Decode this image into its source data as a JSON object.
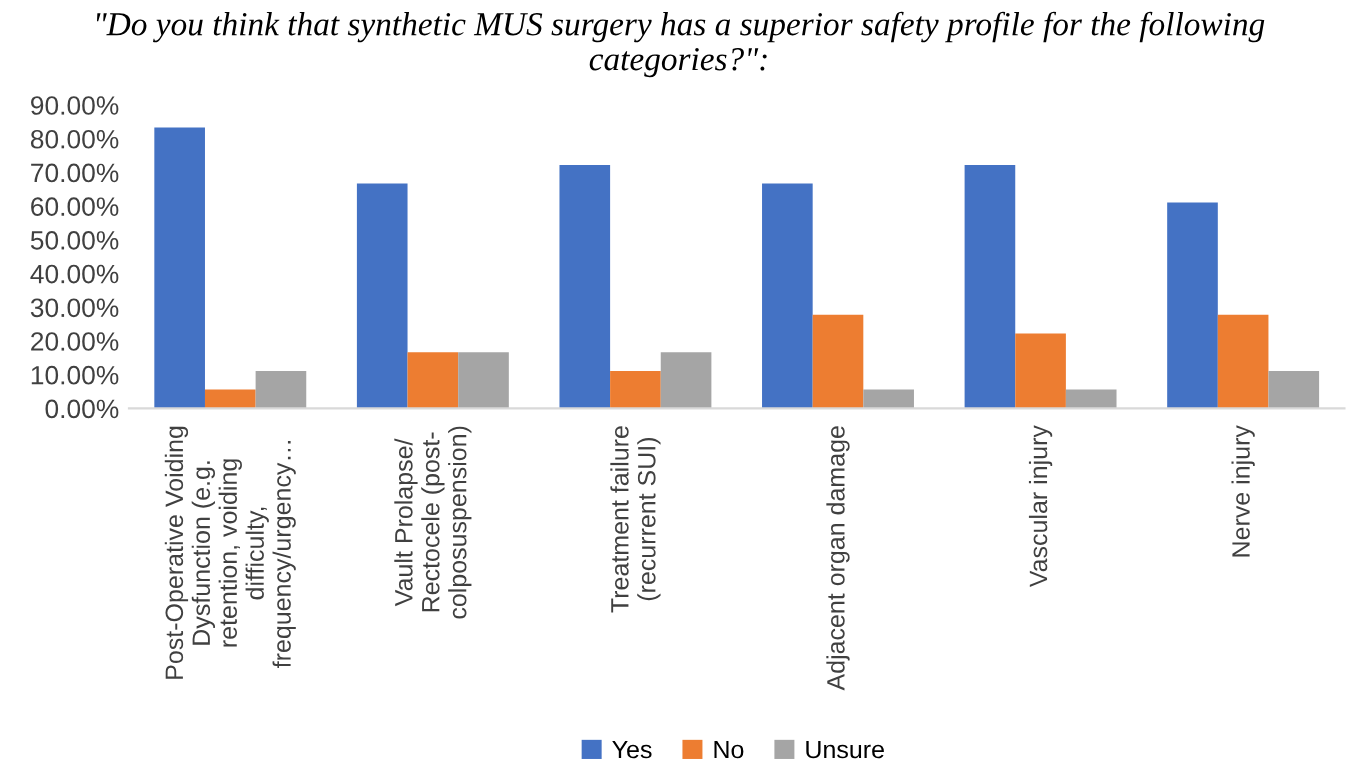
{
  "chart_data": {
    "type": "bar",
    "title": "\"Do you think that synthetic MUS surgery has a superior safety profile for the following categories?\":",
    "categories": [
      "Post-Operative Voiding\nDysfunction (e.g.\nretention, voiding\ndifficulty,\nfrequency/urgency…",
      "Vault Prolapse/\nRectocele (post-\ncolposuspension)",
      "Treatment failure\n(recurrent SUI)",
      "Adjacent organ damage",
      "Vascular injury",
      "Nerve injury"
    ],
    "series": [
      {
        "name": "Yes",
        "color": "#4472c4",
        "values": [
          83.3,
          66.7,
          72.2,
          66.7,
          72.2,
          61.1
        ]
      },
      {
        "name": "No",
        "color": "#ed7d31",
        "values": [
          5.6,
          16.7,
          11.1,
          27.8,
          22.2,
          27.8
        ]
      },
      {
        "name": "Unsure",
        "color": "#a5a5a5",
        "values": [
          11.1,
          16.7,
          16.7,
          5.6,
          5.6,
          11.1
        ]
      }
    ],
    "ylim": [
      0,
      90
    ],
    "yticks": [
      {
        "value": 0,
        "label": "0.00%"
      },
      {
        "value": 10,
        "label": "10.00%"
      },
      {
        "value": 20,
        "label": "20.00%"
      },
      {
        "value": 30,
        "label": "30.00%"
      },
      {
        "value": 40,
        "label": "40.00%"
      },
      {
        "value": 50,
        "label": "50.00%"
      },
      {
        "value": 60,
        "label": "60.00%"
      },
      {
        "value": 70,
        "label": "70.00%"
      },
      {
        "value": 80,
        "label": "80.00%"
      },
      {
        "value": 90,
        "label": "90.00%"
      }
    ],
    "grid": false,
    "legend": "bottom"
  }
}
